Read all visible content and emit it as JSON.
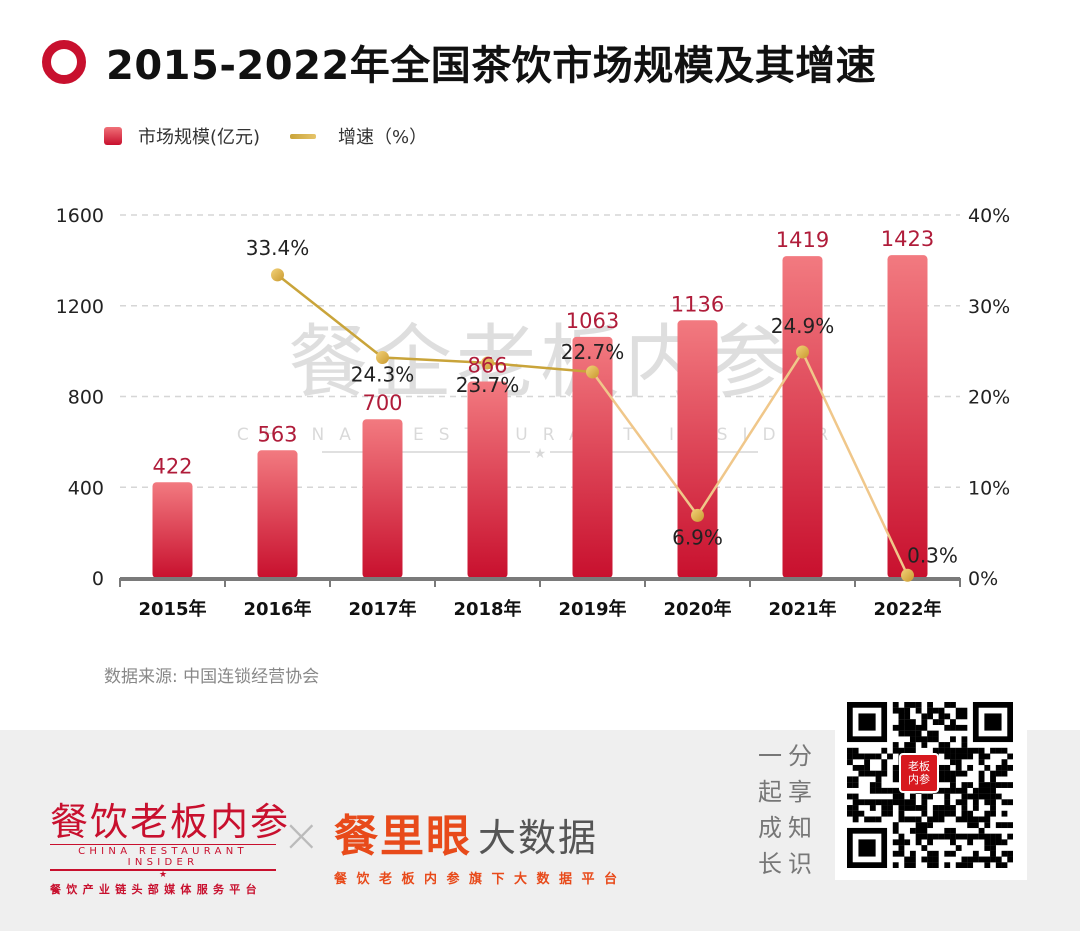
{
  "title": "2015-2022年全国茶饮市场规模及其增速",
  "legend": {
    "bar_label": "市场规模(亿元)",
    "line_label": "增速（%）"
  },
  "colors": {
    "bar_top": "#f27a80",
    "bar_bottom": "#c8102e",
    "bar_label": "#b01c3a",
    "line": "#c9a43a",
    "line_light": "#f0c78a",
    "grid": "#d6d6d6",
    "axis": "#7a7a7a"
  },
  "chart_data": {
    "type": "bar",
    "title": "2015-2022年全国茶饮市场规模及其增速",
    "categories": [
      "2015年",
      "2016年",
      "2017年",
      "2018年",
      "2019年",
      "2020年",
      "2021年",
      "2022年"
    ],
    "series": [
      {
        "name": "市场规模(亿元)",
        "type": "bar",
        "axis": "left",
        "values": [
          422,
          563,
          700,
          866,
          1063,
          1136,
          1419,
          1423
        ],
        "labels": [
          "422",
          "563",
          "700",
          "866",
          "1063",
          "1136",
          "1419",
          "1423"
        ]
      },
      {
        "name": "增速（%）",
        "type": "line",
        "axis": "right",
        "values": [
          null,
          33.4,
          24.3,
          23.7,
          22.7,
          6.9,
          24.9,
          0.3
        ],
        "labels": [
          "",
          "33.4%",
          "24.3%",
          "23.7%",
          "22.7%",
          "6.9%",
          "24.9%",
          "0.3%"
        ]
      }
    ],
    "left_axis": {
      "ylim": [
        0,
        1600
      ],
      "ticks": [
        "0",
        "400",
        "800",
        "1200",
        "1600"
      ],
      "tick_values": [
        0,
        400,
        800,
        1200,
        1600
      ]
    },
    "right_axis": {
      "ylim": [
        0,
        40
      ],
      "ticks": [
        "0%",
        "10%",
        "20%",
        "30%",
        "40%"
      ],
      "tick_values": [
        0,
        10,
        20,
        30,
        40
      ]
    },
    "grid": true,
    "legend_position": "top-left",
    "xlabel": "",
    "ylabel": ""
  },
  "watermark": {
    "cn": "餐企老板内参",
    "en": "CHINA RESTAURANT INSIDER"
  },
  "source": "数据来源: 中国连锁经营协会",
  "footer": {
    "brand1": "餐饮老板内参",
    "brand1_en": "CHINA RESTAURANT INSIDER",
    "brand1_star": "★",
    "brand1_sub": "餐饮产业链头部媒体服务平台",
    "cross": "×",
    "brand2_main": "餐里眼",
    "brand2_side": "大数据",
    "brand2_sub": "餐饮老板内参旗下大数据平台",
    "slogan": [
      "一",
      "分",
      "起",
      "享",
      "成",
      "知",
      "长",
      "识"
    ],
    "qr_logo": "老板内参"
  }
}
